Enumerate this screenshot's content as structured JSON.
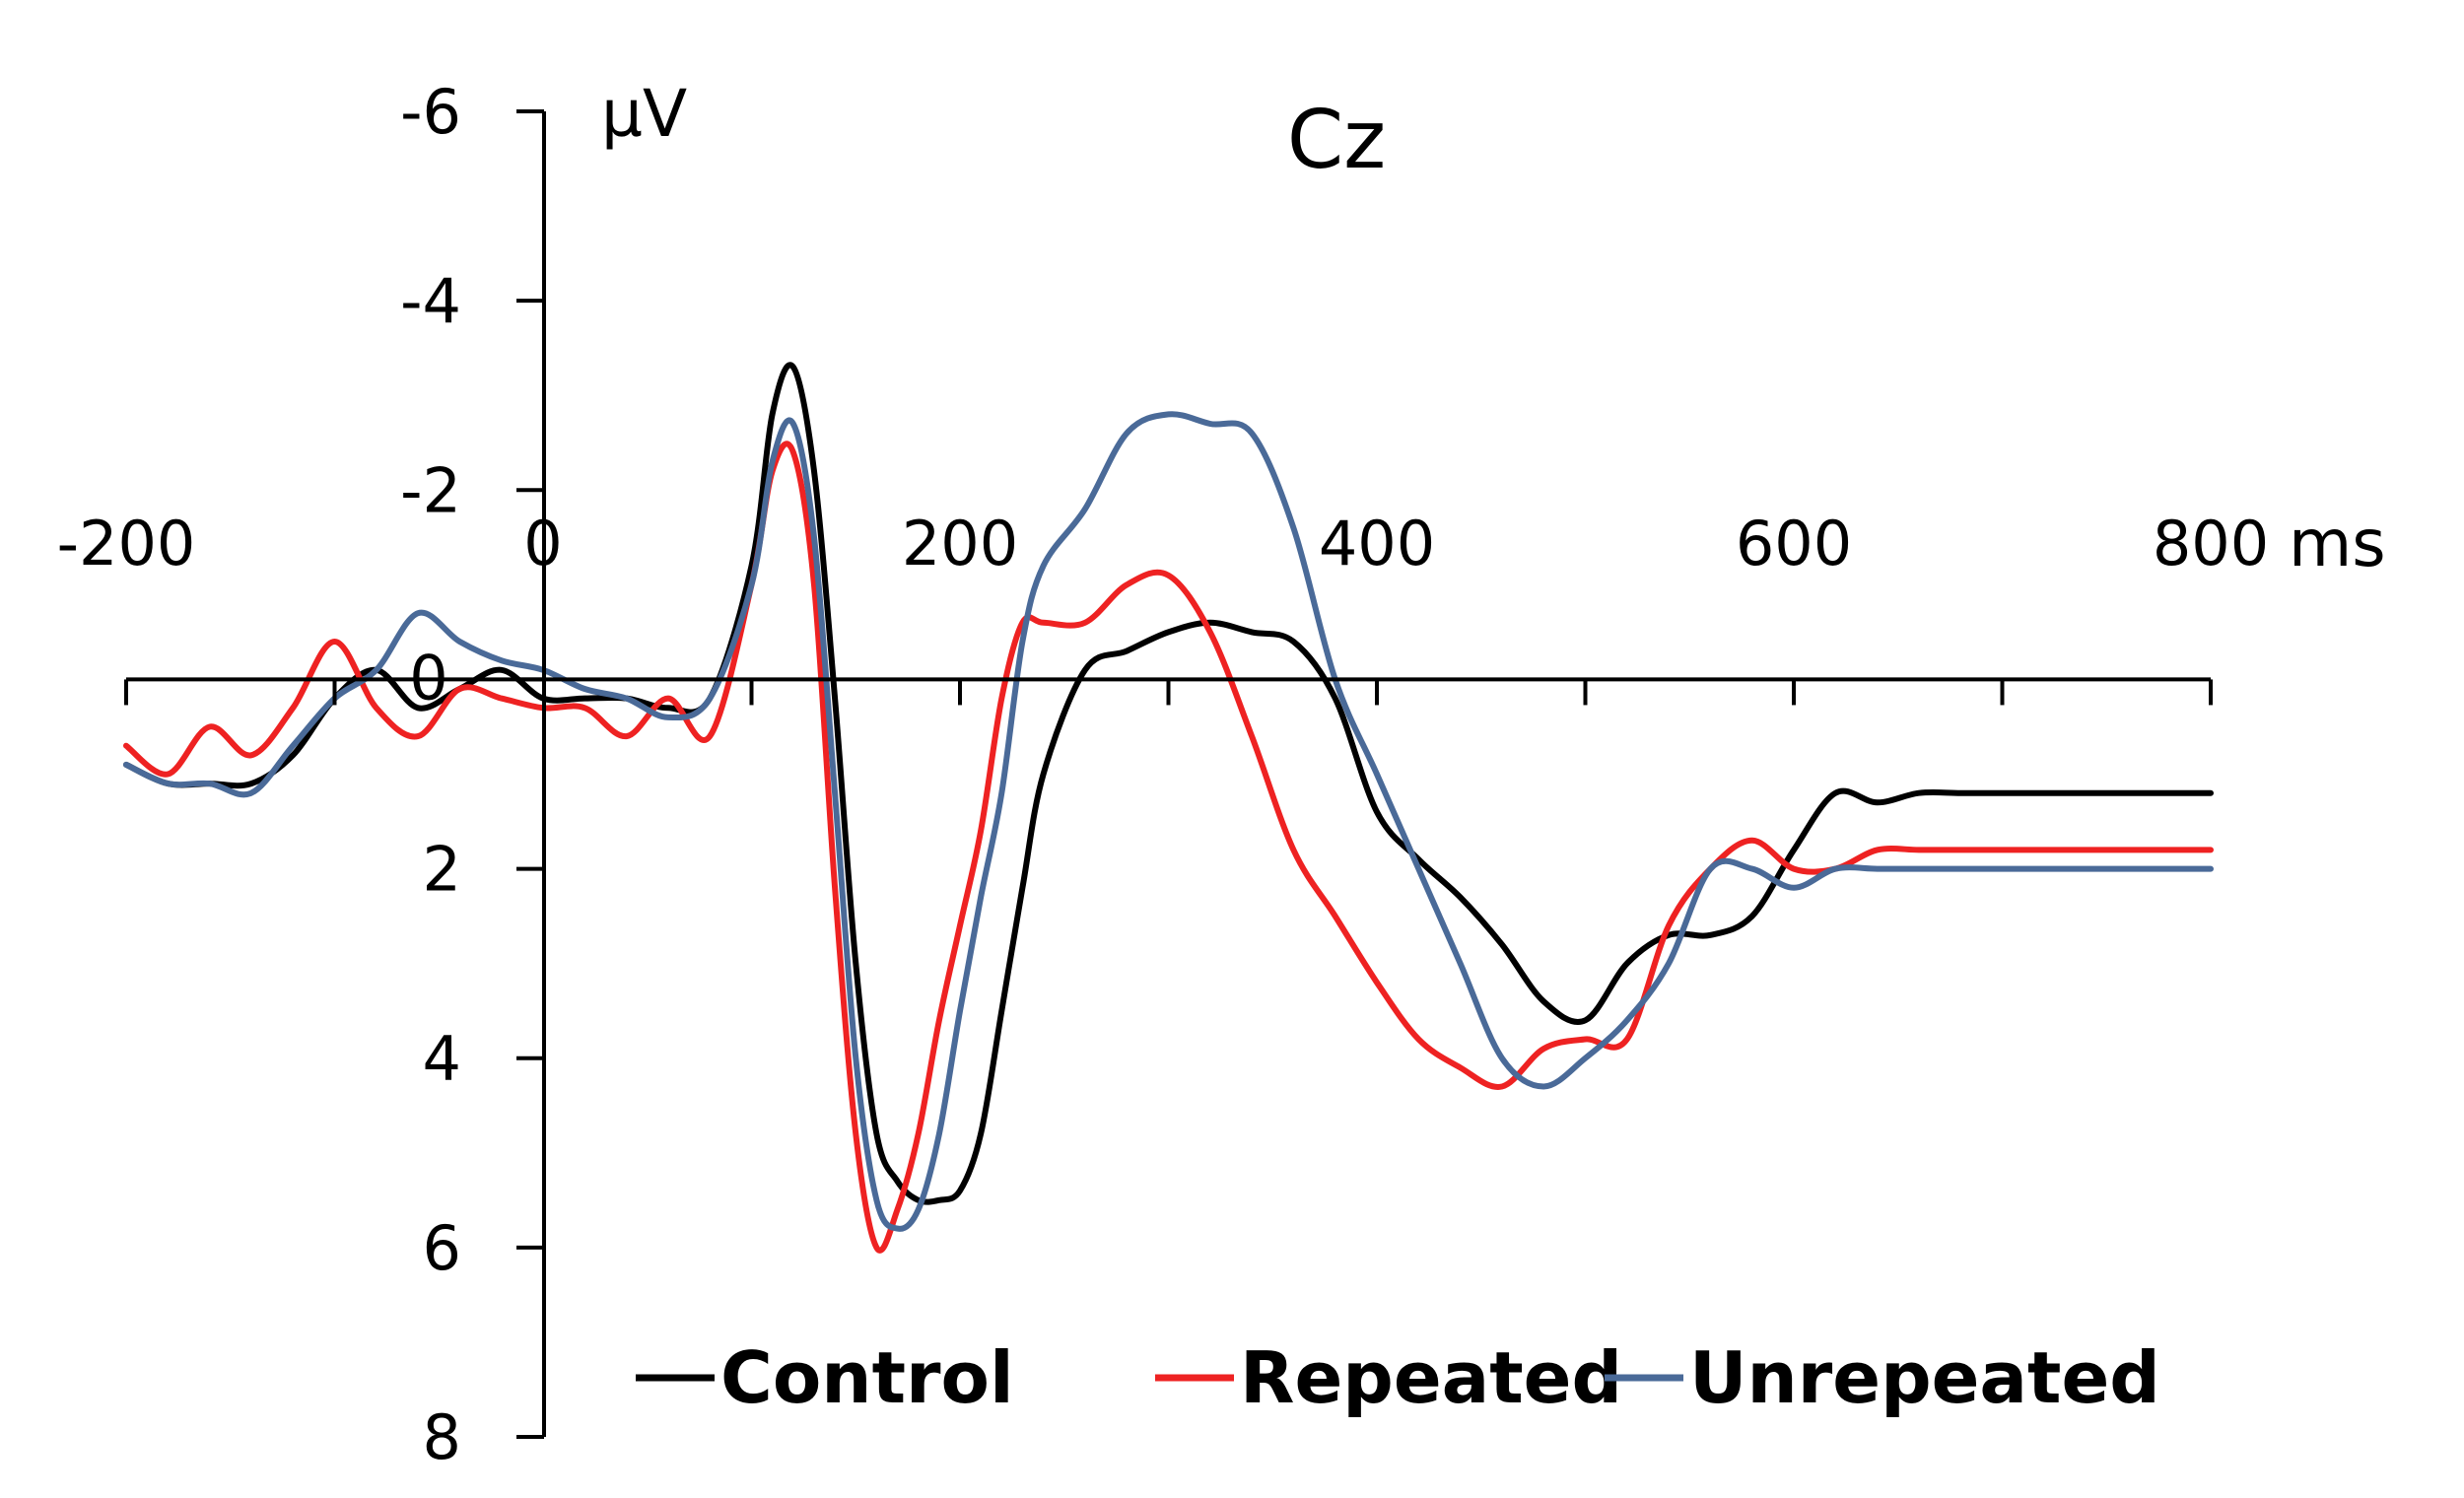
{
  "chart_data": {
    "type": "line",
    "title": "Cz",
    "xlabel": "ms",
    "ylabel": "µV",
    "xlim": [
      -200,
      800
    ],
    "ylim": [
      -6,
      8
    ],
    "y_inverted": true,
    "x_ticks": [
      -200,
      0,
      200,
      400,
      600,
      800
    ],
    "x_tick_labels": [
      "-200",
      "0",
      "200",
      "400",
      "600",
      "800"
    ],
    "x_minor_ticks": [
      -100,
      100,
      300,
      500,
      700
    ],
    "y_ticks": [
      -6,
      -4,
      -2,
      0,
      2,
      4,
      6,
      8
    ],
    "y_tick_labels": [
      "-6",
      "-4",
      "-2",
      "0",
      "2",
      "4",
      "6",
      "8"
    ],
    "grid": false,
    "legend_position": "bottom",
    "x": [
      -200,
      -180,
      -160,
      -140,
      -120,
      -100,
      -80,
      -60,
      -40,
      -20,
      0,
      20,
      40,
      60,
      80,
      100,
      110,
      120,
      130,
      140,
      150,
      160,
      170,
      180,
      190,
      200,
      210,
      220,
      230,
      240,
      260,
      280,
      300,
      320,
      340,
      360,
      380,
      400,
      420,
      440,
      460,
      480,
      500,
      520,
      540,
      560,
      580,
      600,
      620,
      640,
      660,
      680,
      700,
      720,
      740,
      760,
      780,
      800
    ],
    "series": [
      {
        "name": "Control",
        "color": "#000000",
        "values": [
          0.9,
          1.1,
          1.1,
          1.1,
          0.8,
          0.2,
          -0.1,
          0.3,
          0.1,
          -0.1,
          0.2,
          0.2,
          0.2,
          0.3,
          0.2,
          -1.2,
          -2.8,
          -3.3,
          -2.2,
          0.2,
          3.0,
          4.8,
          5.3,
          5.5,
          5.5,
          5.4,
          4.8,
          3.5,
          2.2,
          1.0,
          -0.1,
          -0.3,
          -0.5,
          -0.6,
          -0.5,
          -0.4,
          0.2,
          1.4,
          1.9,
          2.3,
          2.8,
          3.4,
          3.6,
          3.0,
          2.7,
          2.7,
          2.5,
          1.8,
          1.2,
          1.3,
          1.2,
          1.2,
          1.2,
          1.2,
          1.2,
          1.2,
          1.2,
          1.2
        ],
        "values_note": ""
      },
      {
        "name": "Repeated",
        "color": "#ee2222",
        "values": [
          0.7,
          1.0,
          0.5,
          0.8,
          0.3,
          -0.4,
          0.3,
          0.6,
          0.1,
          0.2,
          0.3,
          0.3,
          0.6,
          0.2,
          0.6,
          -1.0,
          -2.2,
          -2.4,
          -1.0,
          2.2,
          4.8,
          6.0,
          5.6,
          4.8,
          3.6,
          2.6,
          1.6,
          0.2,
          -0.6,
          -0.6,
          -0.6,
          -1.0,
          -1.1,
          -0.5,
          0.6,
          1.8,
          2.5,
          3.2,
          3.8,
          4.1,
          4.3,
          3.9,
          3.8,
          3.8,
          2.6,
          2.0,
          1.7,
          2.0,
          2.0,
          1.8,
          1.8,
          1.8,
          1.8,
          1.8,
          1.8,
          1.8,
          1.8,
          1.8
        ],
        "values_note": ""
      },
      {
        "name": "Unrepeated",
        "color": "#4a6a98",
        "values": [
          0.9,
          1.1,
          1.1,
          1.2,
          0.7,
          0.2,
          -0.1,
          -0.7,
          -0.4,
          -0.2,
          -0.1,
          0.1,
          0.2,
          0.4,
          0.2,
          -1.0,
          -2.3,
          -2.7,
          -1.5,
          1.2,
          4.0,
          5.5,
          5.8,
          5.6,
          4.8,
          3.5,
          2.3,
          1.2,
          -0.4,
          -1.2,
          -1.8,
          -2.6,
          -2.8,
          -2.7,
          -2.6,
          -1.6,
          0.0,
          1.0,
          2.0,
          3.0,
          4.0,
          4.3,
          4.0,
          3.6,
          3.0,
          2.0,
          2.0,
          2.2,
          2.0,
          2.0,
          2.0,
          2.0,
          2.0,
          2.0,
          2.0,
          2.0,
          2.0,
          2.0
        ],
        "values_note": ""
      }
    ]
  }
}
